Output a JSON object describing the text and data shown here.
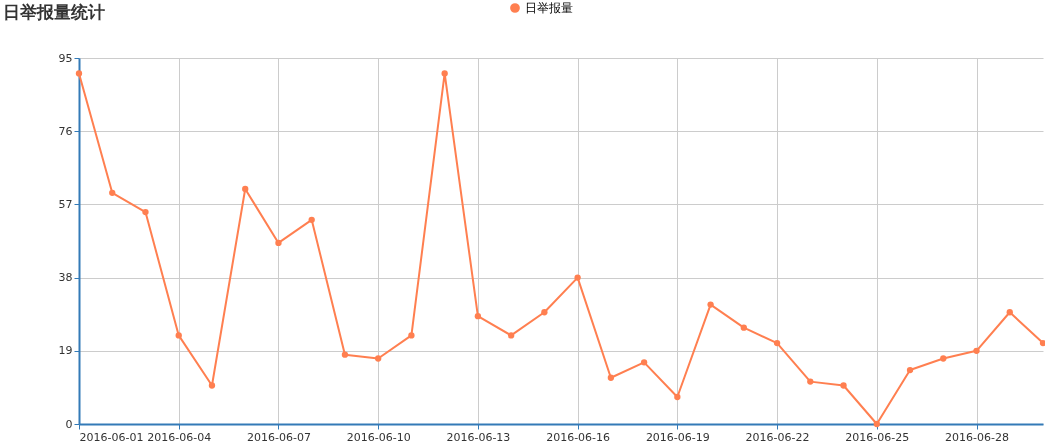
{
  "chart_data": {
    "type": "line",
    "title": "日举报量统计",
    "x": [
      "2016-06-01",
      "2016-06-02",
      "2016-06-03",
      "2016-06-04",
      "2016-06-05",
      "2016-06-06",
      "2016-06-07",
      "2016-06-08",
      "2016-06-09",
      "2016-06-10",
      "2016-06-11",
      "2016-06-12",
      "2016-06-13",
      "2016-06-14",
      "2016-06-15",
      "2016-06-16",
      "2016-06-17",
      "2016-06-18",
      "2016-06-19",
      "2016-06-20",
      "2016-06-21",
      "2016-06-22",
      "2016-06-23",
      "2016-06-24",
      "2016-06-25",
      "2016-06-26",
      "2016-06-27",
      "2016-06-28",
      "2016-06-29",
      "2016-06-30"
    ],
    "series": [
      {
        "name": "日举报量",
        "color": "#ff7f50",
        "values": [
          91,
          60,
          55,
          23,
          10,
          61,
          47,
          53,
          18,
          17,
          23,
          91,
          28,
          23,
          29,
          38,
          12,
          16,
          7,
          31,
          25,
          21,
          11,
          10,
          0,
          14,
          17,
          19,
          29,
          21
        ]
      }
    ],
    "xlim": [
      "2016-06-01",
      "2016-06-30"
    ],
    "xticks": [
      {
        "value": "2016-06-01",
        "label": "2016-06-01"
      },
      {
        "value": "2016-06-04",
        "label": "2016-06-04"
      },
      {
        "value": "2016-06-07",
        "label": "2016-06-07"
      },
      {
        "value": "2016-06-10",
        "label": "2016-06-10"
      },
      {
        "value": "2016-06-13",
        "label": "2016-06-13"
      },
      {
        "value": "2016-06-16",
        "label": "2016-06-16"
      },
      {
        "value": "2016-06-19",
        "label": "2016-06-19"
      },
      {
        "value": "2016-06-22",
        "label": "2016-06-22"
      },
      {
        "value": "2016-06-25",
        "label": "2016-06-25"
      },
      {
        "value": "2016-06-28",
        "label": "2016-06-28"
      }
    ],
    "ylim": [
      0,
      95
    ],
    "yticks": [
      0,
      19,
      38,
      57,
      76,
      95
    ],
    "grid": true,
    "legend": "top",
    "marker": "circle",
    "line_style": "solid"
  }
}
